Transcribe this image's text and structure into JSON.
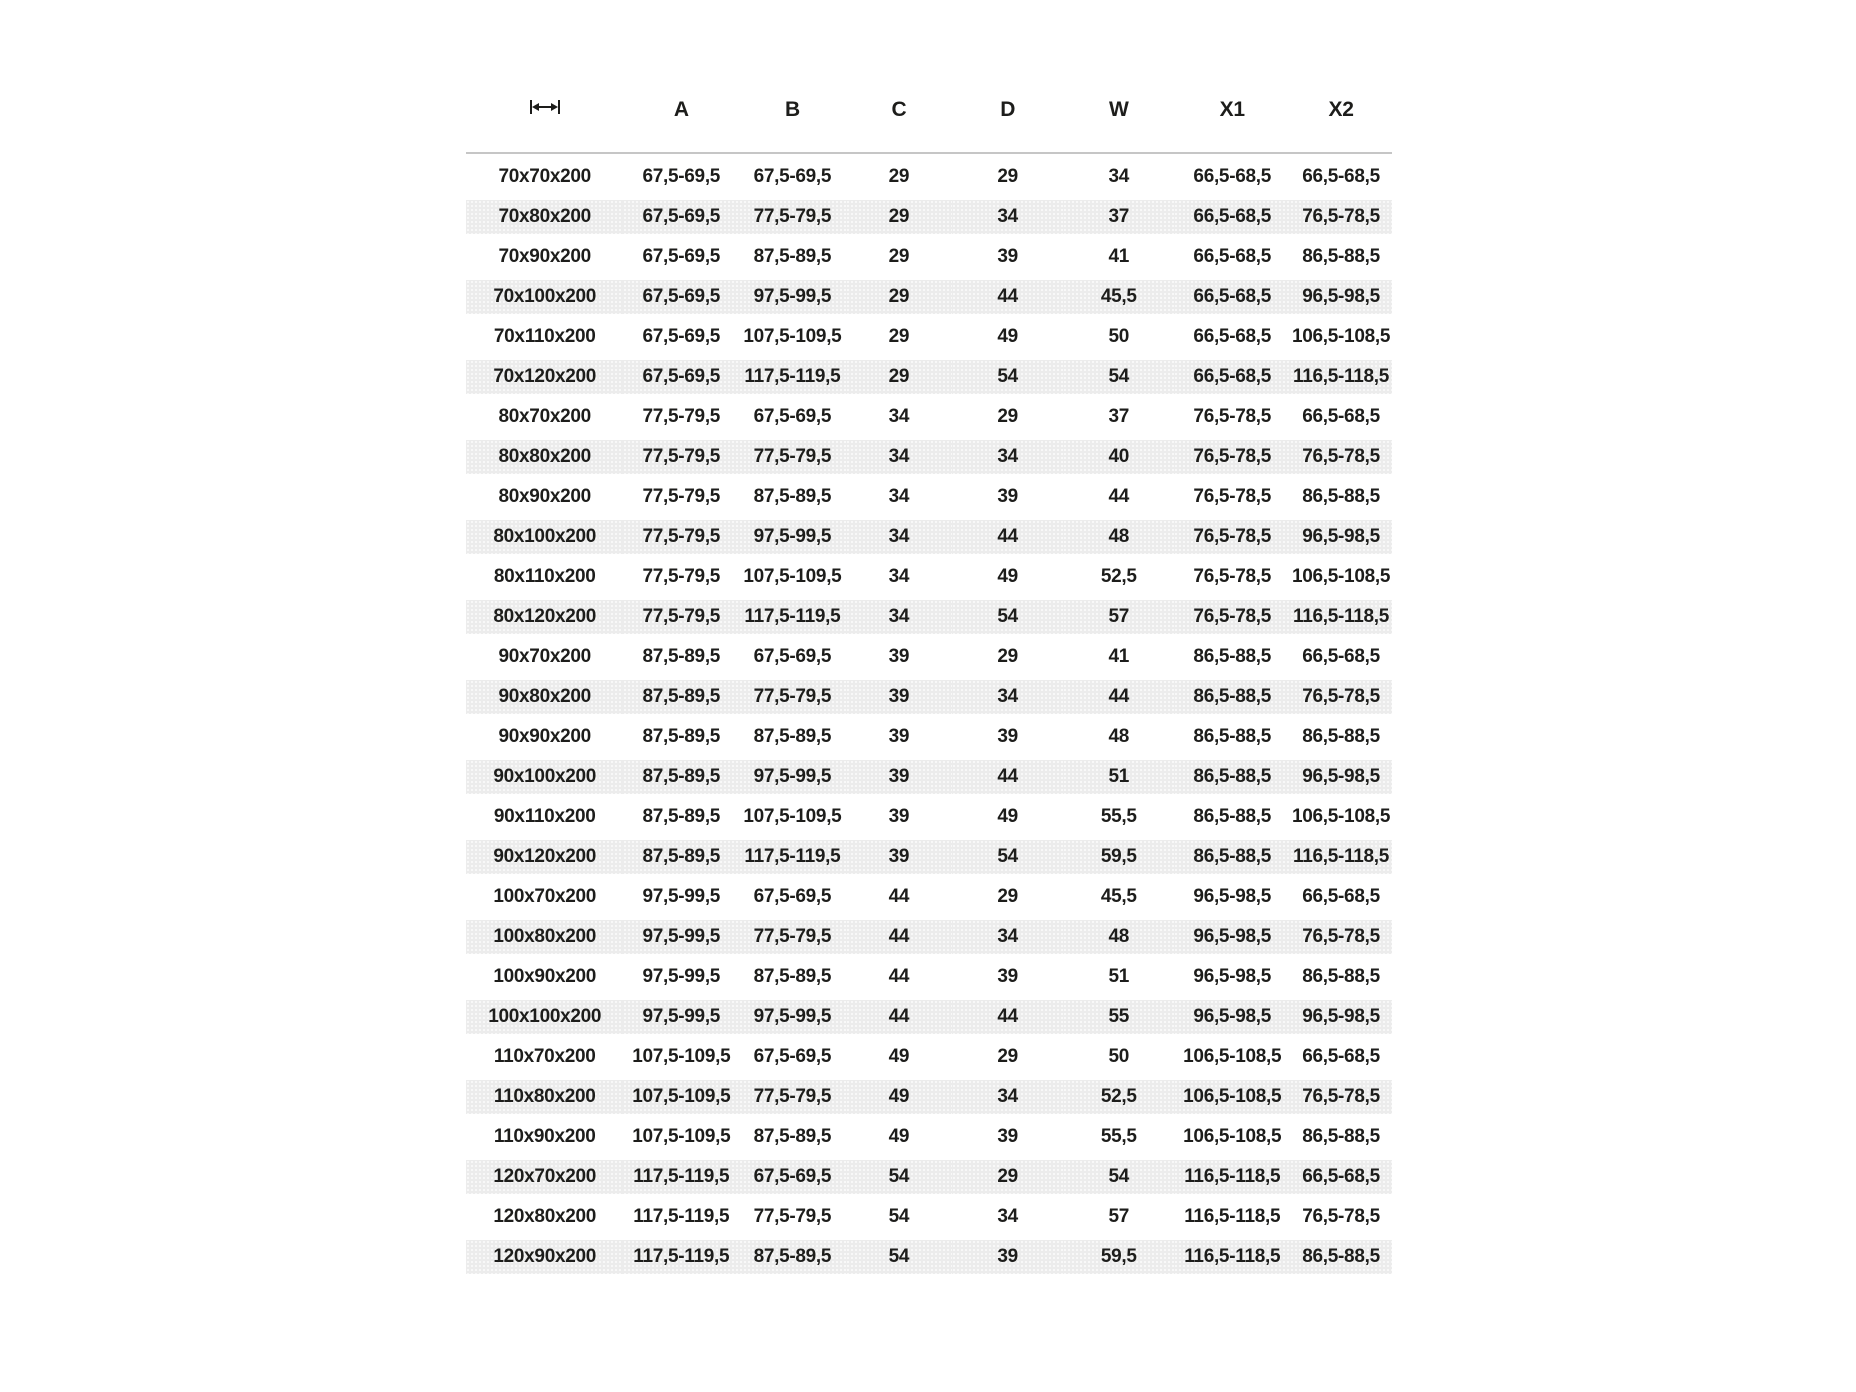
{
  "chart_data": {
    "type": "table",
    "title": "",
    "first_column_header_icon": "width-dimension-icon",
    "columns": [
      "",
      "A",
      "B",
      "C",
      "D",
      "W",
      "X1",
      "X2"
    ],
    "rows": [
      [
        "70x70x200",
        "67,5-69,5",
        "67,5-69,5",
        "29",
        "29",
        "34",
        "66,5-68,5",
        "66,5-68,5"
      ],
      [
        "70x80x200",
        "67,5-69,5",
        "77,5-79,5",
        "29",
        "34",
        "37",
        "66,5-68,5",
        "76,5-78,5"
      ],
      [
        "70x90x200",
        "67,5-69,5",
        "87,5-89,5",
        "29",
        "39",
        "41",
        "66,5-68,5",
        "86,5-88,5"
      ],
      [
        "70x100x200",
        "67,5-69,5",
        "97,5-99,5",
        "29",
        "44",
        "45,5",
        "66,5-68,5",
        "96,5-98,5"
      ],
      [
        "70x110x200",
        "67,5-69,5",
        "107,5-109,5",
        "29",
        "49",
        "50",
        "66,5-68,5",
        "106,5-108,5"
      ],
      [
        "70x120x200",
        "67,5-69,5",
        "117,5-119,5",
        "29",
        "54",
        "54",
        "66,5-68,5",
        "116,5-118,5"
      ],
      [
        "80x70x200",
        "77,5-79,5",
        "67,5-69,5",
        "34",
        "29",
        "37",
        "76,5-78,5",
        "66,5-68,5"
      ],
      [
        "80x80x200",
        "77,5-79,5",
        "77,5-79,5",
        "34",
        "34",
        "40",
        "76,5-78,5",
        "76,5-78,5"
      ],
      [
        "80x90x200",
        "77,5-79,5",
        "87,5-89,5",
        "34",
        "39",
        "44",
        "76,5-78,5",
        "86,5-88,5"
      ],
      [
        "80x100x200",
        "77,5-79,5",
        "97,5-99,5",
        "34",
        "44",
        "48",
        "76,5-78,5",
        "96,5-98,5"
      ],
      [
        "80x110x200",
        "77,5-79,5",
        "107,5-109,5",
        "34",
        "49",
        "52,5",
        "76,5-78,5",
        "106,5-108,5"
      ],
      [
        "80x120x200",
        "77,5-79,5",
        "117,5-119,5",
        "34",
        "54",
        "57",
        "76,5-78,5",
        "116,5-118,5"
      ],
      [
        "90x70x200",
        "87,5-89,5",
        "67,5-69,5",
        "39",
        "29",
        "41",
        "86,5-88,5",
        "66,5-68,5"
      ],
      [
        "90x80x200",
        "87,5-89,5",
        "77,5-79,5",
        "39",
        "34",
        "44",
        "86,5-88,5",
        "76,5-78,5"
      ],
      [
        "90x90x200",
        "87,5-89,5",
        "87,5-89,5",
        "39",
        "39",
        "48",
        "86,5-88,5",
        "86,5-88,5"
      ],
      [
        "90x100x200",
        "87,5-89,5",
        "97,5-99,5",
        "39",
        "44",
        "51",
        "86,5-88,5",
        "96,5-98,5"
      ],
      [
        "90x110x200",
        "87,5-89,5",
        "107,5-109,5",
        "39",
        "49",
        "55,5",
        "86,5-88,5",
        "106,5-108,5"
      ],
      [
        "90x120x200",
        "87,5-89,5",
        "117,5-119,5",
        "39",
        "54",
        "59,5",
        "86,5-88,5",
        "116,5-118,5"
      ],
      [
        "100x70x200",
        "97,5-99,5",
        "67,5-69,5",
        "44",
        "29",
        "45,5",
        "96,5-98,5",
        "66,5-68,5"
      ],
      [
        "100x80x200",
        "97,5-99,5",
        "77,5-79,5",
        "44",
        "34",
        "48",
        "96,5-98,5",
        "76,5-78,5"
      ],
      [
        "100x90x200",
        "97,5-99,5",
        "87,5-89,5",
        "44",
        "39",
        "51",
        "96,5-98,5",
        "86,5-88,5"
      ],
      [
        "100x100x200",
        "97,5-99,5",
        "97,5-99,5",
        "44",
        "44",
        "55",
        "96,5-98,5",
        "96,5-98,5"
      ],
      [
        "110x70x200",
        "107,5-109,5",
        "67,5-69,5",
        "49",
        "29",
        "50",
        "106,5-108,5",
        "66,5-68,5"
      ],
      [
        "110x80x200",
        "107,5-109,5",
        "77,5-79,5",
        "49",
        "34",
        "52,5",
        "106,5-108,5",
        "76,5-78,5"
      ],
      [
        "110x90x200",
        "107,5-109,5",
        "87,5-89,5",
        "49",
        "39",
        "55,5",
        "106,5-108,5",
        "86,5-88,5"
      ],
      [
        "120x70x200",
        "117,5-119,5",
        "67,5-69,5",
        "54",
        "29",
        "54",
        "116,5-118,5",
        "66,5-68,5"
      ],
      [
        "120x80x200",
        "117,5-119,5",
        "77,5-79,5",
        "54",
        "34",
        "57",
        "116,5-118,5",
        "76,5-78,5"
      ],
      [
        "120x90x200",
        "117,5-119,5",
        "87,5-89,5",
        "54",
        "39",
        "59,5",
        "116,5-118,5",
        "86,5-88,5"
      ]
    ],
    "layout": {
      "stripe_pattern": "even rows shaded",
      "text_align": "center",
      "header_rule": true
    }
  },
  "colors": {
    "text": "#1d1d1b",
    "stripe": "#ececec",
    "header_rule": "#c6c6c6",
    "background": "#ffffff"
  }
}
